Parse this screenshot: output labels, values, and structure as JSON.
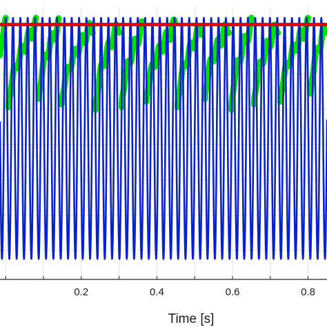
{
  "chart_data": {
    "type": "line",
    "title": "",
    "xlabel": "Time [s]",
    "ylabel": "",
    "xlim": [
      -0.015,
      0.85
    ],
    "ylim": [
      0,
      1
    ],
    "grid": true,
    "x_ticks": [
      0.2,
      0.4,
      0.6,
      0.8
    ],
    "x_tick_labels": [
      "0.2",
      "0.4",
      "0.6",
      "0.8"
    ],
    "x_minor_ticks": [
      0.0,
      0.1,
      0.3,
      0.5,
      0.7
    ],
    "y_grid_levels": [
      0.105,
      0.235,
      0.365,
      0.495,
      0.625,
      0.755,
      0.885
    ],
    "series": [
      {
        "color": "#dd0000",
        "x": [
          -0.015,
          0.85
        ],
        "y": [
          0.935,
          0.935
        ]
      },
      {
        "color": "#00e000",
        "oscillation_period_s": 0.0193,
        "segments": [
          {
            "x": [
              -0.015,
              0.0
            ],
            "y": [
              0.84,
              0.96
            ]
          },
          {
            "x": [
              0.008,
              0.08
            ],
            "y": [
              0.65,
              0.96
            ]
          },
          {
            "x": [
              0.088,
              0.14
            ],
            "y": [
              0.68,
              0.96
            ]
          },
          {
            "x": [
              0.148,
              0.23
            ],
            "y": [
              0.66,
              0.96
            ]
          },
          {
            "x": [
              0.238,
              0.3
            ],
            "y": [
              0.64,
              0.96
            ]
          },
          {
            "x": [
              0.307,
              0.365
            ],
            "y": [
              0.65,
              0.96
            ]
          },
          {
            "x": [
              0.372,
              0.448
            ],
            "y": [
              0.67,
              0.96
            ]
          },
          {
            "x": [
              0.455,
              0.52
            ],
            "y": [
              0.65,
              0.96
            ]
          },
          {
            "x": [
              0.527,
              0.59
            ],
            "y": [
              0.68,
              0.96
            ]
          },
          {
            "x": [
              0.597,
              0.65
            ],
            "y": [
              0.64,
              0.96
            ]
          },
          {
            "x": [
              0.657,
              0.72
            ],
            "y": [
              0.66,
              0.96
            ]
          },
          {
            "x": [
              0.727,
              0.8
            ],
            "y": [
              0.67,
              0.96
            ]
          },
          {
            "x": [
              0.807,
              0.85
            ],
            "y": [
              0.7,
              0.96
            ]
          }
        ]
      },
      {
        "color": "#0a22c8",
        "frequency_hz": 51.5,
        "min": 0.075,
        "max": 0.96,
        "x_range": [
          -0.015,
          0.85
        ]
      }
    ]
  }
}
